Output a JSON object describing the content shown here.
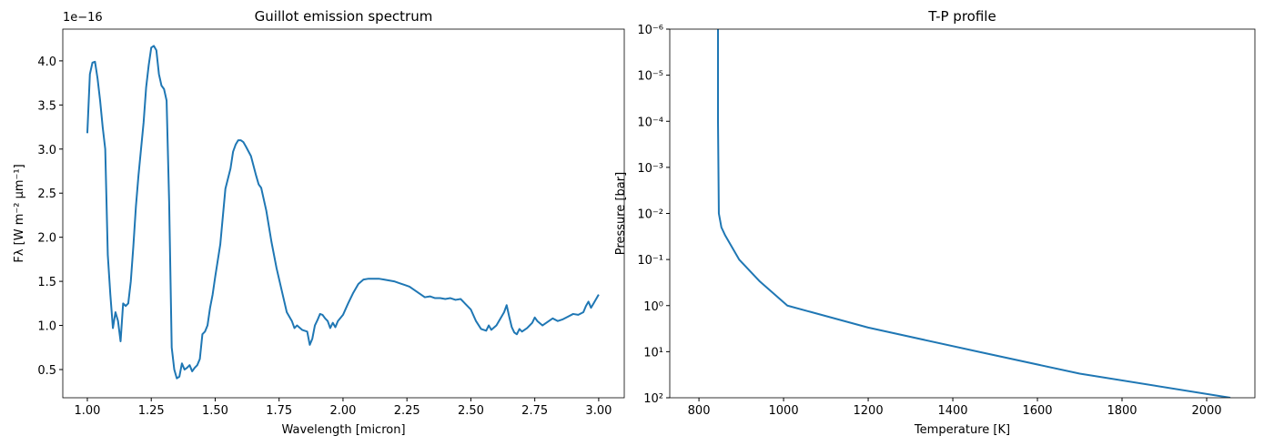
{
  "chart_data": [
    {
      "type": "line",
      "title": "Guillot emission spectrum",
      "xlabel": "Wavelength [micron]",
      "ylabel": "Fλ [W m⁻² μm⁻¹]",
      "offset_text": "1e−16",
      "x": [
        1.0,
        1.01,
        1.02,
        1.03,
        1.04,
        1.05,
        1.06,
        1.07,
        1.08,
        1.09,
        1.1,
        1.11,
        1.12,
        1.13,
        1.14,
        1.15,
        1.16,
        1.17,
        1.18,
        1.19,
        1.2,
        1.21,
        1.22,
        1.23,
        1.24,
        1.25,
        1.26,
        1.27,
        1.28,
        1.29,
        1.3,
        1.31,
        1.32,
        1.33,
        1.34,
        1.35,
        1.36,
        1.37,
        1.38,
        1.39,
        1.4,
        1.41,
        1.42,
        1.43,
        1.44,
        1.45,
        1.46,
        1.47,
        1.48,
        1.49,
        1.5,
        1.52,
        1.54,
        1.56,
        1.57,
        1.58,
        1.59,
        1.6,
        1.61,
        1.62,
        1.64,
        1.66,
        1.67,
        1.68,
        1.7,
        1.72,
        1.74,
        1.76,
        1.78,
        1.8,
        1.81,
        1.82,
        1.84,
        1.86,
        1.87,
        1.88,
        1.89,
        1.9,
        1.91,
        1.92,
        1.93,
        1.94,
        1.95,
        1.96,
        1.97,
        1.98,
        2.0,
        2.02,
        2.04,
        2.06,
        2.08,
        2.1,
        2.12,
        2.14,
        2.16,
        2.18,
        2.2,
        2.22,
        2.24,
        2.26,
        2.28,
        2.3,
        2.32,
        2.34,
        2.36,
        2.38,
        2.4,
        2.42,
        2.44,
        2.46,
        2.48,
        2.5,
        2.52,
        2.54,
        2.56,
        2.57,
        2.58,
        2.6,
        2.62,
        2.63,
        2.64,
        2.65,
        2.66,
        2.67,
        2.68,
        2.69,
        2.7,
        2.72,
        2.74,
        2.75,
        2.76,
        2.78,
        2.8,
        2.82,
        2.84,
        2.86,
        2.88,
        2.9,
        2.92,
        2.94,
        2.95,
        2.96,
        2.97,
        2.98,
        3.0
      ],
      "series": [
        {
          "color": "#1f77b4",
          "values": [
            3.18,
            3.85,
            3.98,
            3.99,
            3.8,
            3.55,
            3.25,
            3.0,
            1.8,
            1.35,
            0.97,
            1.15,
            1.05,
            0.82,
            1.25,
            1.22,
            1.25,
            1.5,
            1.9,
            2.35,
            2.7,
            3.0,
            3.3,
            3.7,
            3.95,
            4.15,
            4.17,
            4.12,
            3.85,
            3.72,
            3.68,
            3.55,
            2.4,
            0.75,
            0.5,
            0.4,
            0.42,
            0.57,
            0.5,
            0.52,
            0.55,
            0.48,
            0.52,
            0.55,
            0.62,
            0.9,
            0.93,
            1.0,
            1.2,
            1.35,
            1.55,
            1.92,
            2.55,
            2.78,
            2.97,
            3.05,
            3.1,
            3.1,
            3.08,
            3.03,
            2.92,
            2.7,
            2.6,
            2.56,
            2.3,
            1.95,
            1.65,
            1.4,
            1.15,
            1.05,
            0.97,
            1.0,
            0.95,
            0.93,
            0.78,
            0.85,
            1.0,
            1.06,
            1.13,
            1.12,
            1.08,
            1.05,
            0.97,
            1.03,
            0.98,
            1.05,
            1.12,
            1.25,
            1.37,
            1.47,
            1.52,
            1.53,
            1.53,
            1.53,
            1.52,
            1.51,
            1.5,
            1.48,
            1.46,
            1.44,
            1.4,
            1.36,
            1.32,
            1.33,
            1.31,
            1.31,
            1.3,
            1.31,
            1.29,
            1.3,
            1.24,
            1.18,
            1.05,
            0.96,
            0.94,
            1.0,
            0.95,
            1.0,
            1.1,
            1.15,
            1.23,
            1.1,
            0.98,
            0.92,
            0.9,
            0.96,
            0.93,
            0.97,
            1.03,
            1.09,
            1.05,
            1.0,
            1.04,
            1.08,
            1.05,
            1.07,
            1.1,
            1.13,
            1.12,
            1.15,
            1.22,
            1.27,
            1.2,
            1.25,
            1.35
          ]
        }
      ],
      "xlim": [
        0.904,
        3.1
      ],
      "ylim": [
        0.18,
        4.36
      ],
      "xticks": [
        {
          "value": 1,
          "label": "1.00"
        },
        1.25,
        {
          "value": 1.5,
          "label": "1.50"
        },
        1.75,
        {
          "value": 2,
          "label": "2.00"
        },
        2.25,
        {
          "value": 2.5,
          "label": "2.50"
        },
        2.75,
        {
          "value": 3,
          "label": "3.00"
        }
      ],
      "yticks": [
        0.5,
        {
          "value": 1,
          "label": "1.0"
        },
        1.5,
        {
          "value": 2,
          "label": "2.0"
        },
        2.5,
        {
          "value": 3,
          "label": "3.0"
        },
        3.5,
        {
          "value": 4,
          "label": "4.0"
        }
      ]
    },
    {
      "type": "line",
      "title": "T-P profile",
      "xlabel": "Temperature [K]",
      "ylabel": "Pressure [bar]",
      "yscale": "log",
      "x": [
        845,
        845,
        845,
        846,
        847,
        853,
        862,
        895,
        944,
        1009,
        1200,
        1460,
        1700,
        2056
      ],
      "series": [
        {
          "color": "#1f77b4",
          "values": [
            1e-06,
            1e-05,
            0.0001,
            0.001,
            0.01,
            0.02,
            0.03,
            0.1,
            0.3,
            1,
            3,
            10,
            30,
            100
          ]
        }
      ],
      "xlim": [
        731,
        2114
      ],
      "ylim": [
        100,
        1e-06
      ],
      "xticks": [
        800,
        1000,
        1200,
        1400,
        1600,
        1800,
        2000
      ],
      "yticks": [
        {
          "value": 1e-06,
          "label": "10⁻⁶"
        },
        {
          "value": 1e-05,
          "label": "10⁻⁵"
        },
        {
          "value": 0.0001,
          "label": "10⁻⁴"
        },
        {
          "value": 0.001,
          "label": "10⁻³"
        },
        {
          "value": 0.01,
          "label": "10⁻²"
        },
        {
          "value": 0.1,
          "label": "10⁻¹"
        },
        {
          "value": 1,
          "label": "10⁰"
        },
        {
          "value": 10,
          "label": "10¹"
        },
        {
          "value": 100,
          "label": "10²"
        }
      ]
    }
  ]
}
